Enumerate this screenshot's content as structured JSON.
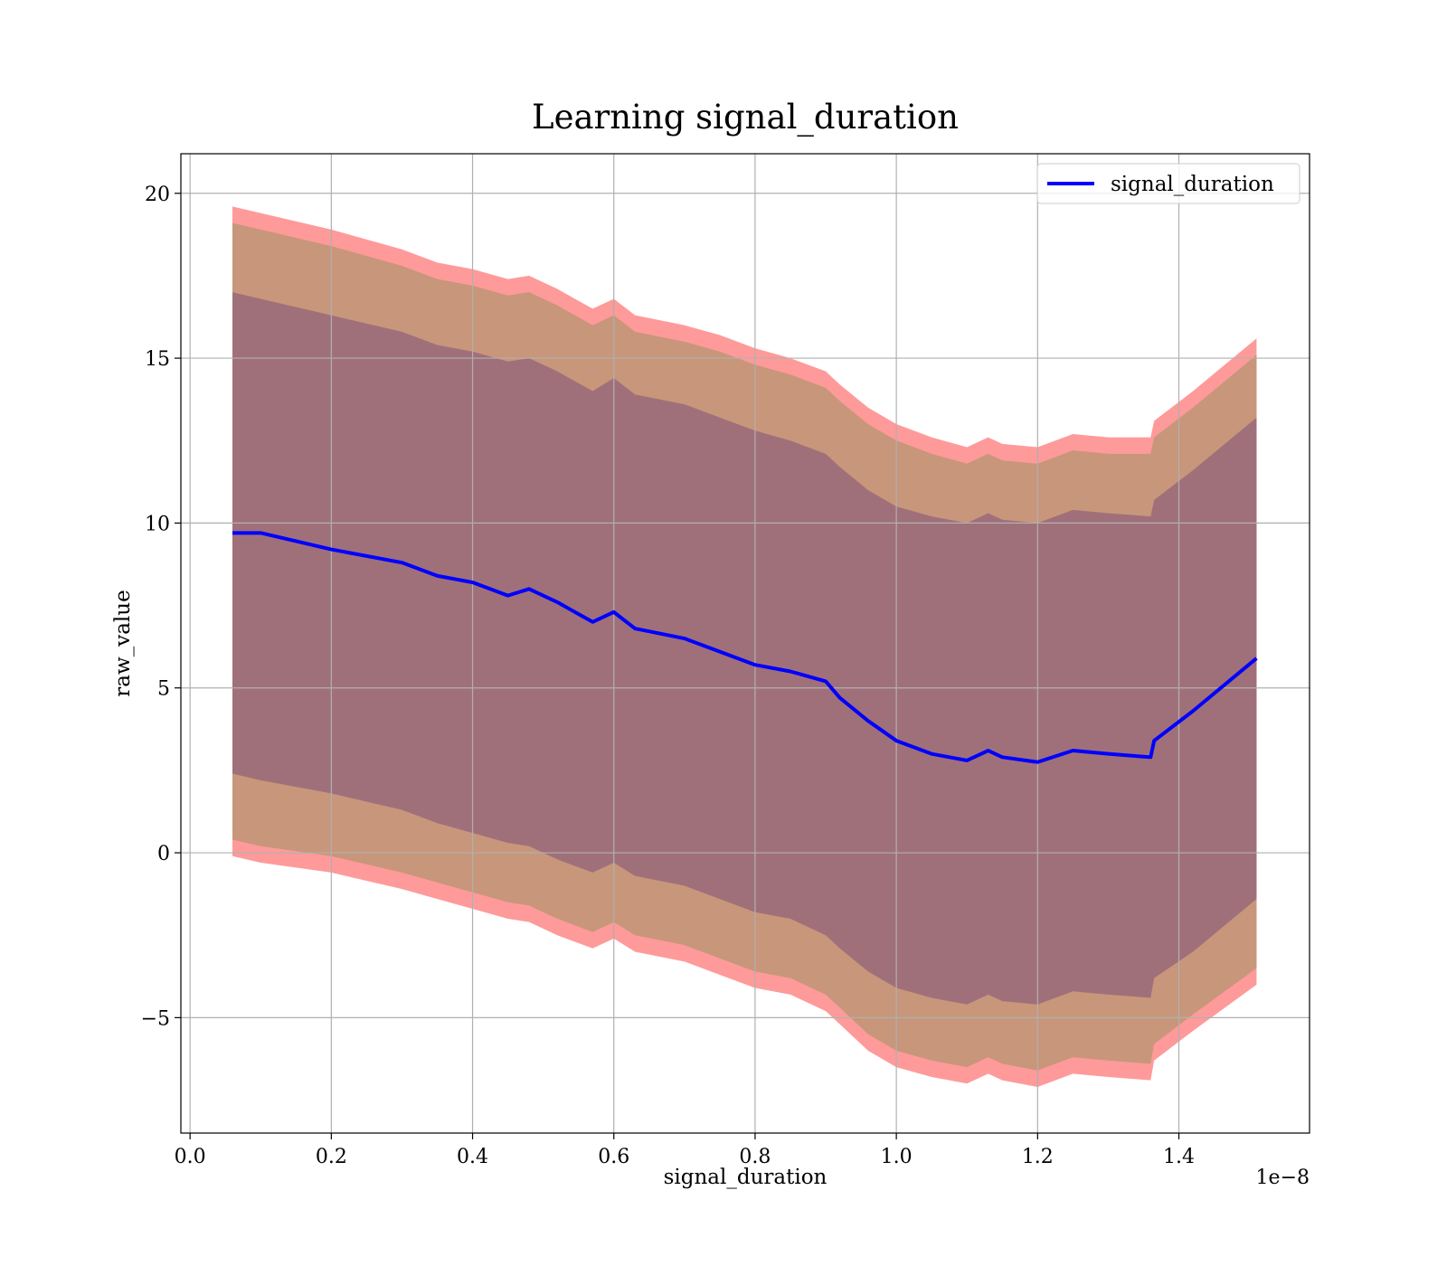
{
  "chart_data": {
    "type": "line",
    "title": "Learning signal_duration",
    "xlabel": "signal_duration",
    "ylabel": "raw_value",
    "x_offset_text": "1e−8",
    "xlim": [
      -0.013,
      1.585
    ],
    "ylim": [
      -8.5,
      21.2
    ],
    "xticks": [
      0.0,
      0.2,
      0.4,
      0.6,
      0.8,
      1.0,
      1.2,
      1.4
    ],
    "xtick_labels": [
      "0.0",
      "0.2",
      "0.4",
      "0.6",
      "0.8",
      "1.0",
      "1.2",
      "1.4"
    ],
    "yticks": [
      -5,
      0,
      5,
      10,
      15,
      20
    ],
    "ytick_labels": [
      "−5",
      "0",
      "5",
      "10",
      "15",
      "20"
    ],
    "grid": true,
    "legend": {
      "position": "top-right",
      "entries": [
        "signal_duration"
      ]
    },
    "colors": {
      "line": "#0000ff",
      "band_outer": "#ff9a9a",
      "band_middle": "#c8967a",
      "band_inner": "#a0707a",
      "grid": "#b0b0b0"
    },
    "x": [
      0.06,
      0.1,
      0.2,
      0.3,
      0.35,
      0.4,
      0.45,
      0.48,
      0.52,
      0.57,
      0.6,
      0.63,
      0.7,
      0.75,
      0.8,
      0.85,
      0.9,
      0.92,
      0.96,
      1.0,
      1.05,
      1.1,
      1.13,
      1.15,
      1.2,
      1.25,
      1.3,
      1.36,
      1.365,
      1.42,
      1.51
    ],
    "series": [
      {
        "name": "signal_duration",
        "values": [
          9.7,
          9.7,
          9.2,
          8.8,
          8.4,
          8.2,
          7.8,
          8.0,
          7.6,
          7.0,
          7.3,
          6.8,
          6.5,
          6.1,
          5.7,
          5.5,
          5.2,
          4.7,
          4.0,
          3.4,
          3.0,
          2.8,
          3.1,
          2.9,
          2.75,
          3.1,
          3.0,
          2.9,
          3.4,
          4.3,
          5.9
        ]
      }
    ],
    "bands": [
      {
        "level": "outer",
        "upper": [
          19.6,
          19.4,
          18.9,
          18.3,
          17.9,
          17.7,
          17.4,
          17.5,
          17.1,
          16.5,
          16.8,
          16.3,
          16.0,
          15.7,
          15.3,
          15.0,
          14.6,
          14.2,
          13.5,
          13.0,
          12.6,
          12.3,
          12.6,
          12.4,
          12.3,
          12.7,
          12.6,
          12.6,
          13.1,
          14.0,
          15.6
        ],
        "lower": [
          -0.1,
          -0.3,
          -0.6,
          -1.1,
          -1.4,
          -1.7,
          -2.0,
          -2.1,
          -2.5,
          -2.9,
          -2.6,
          -3.0,
          -3.3,
          -3.7,
          -4.1,
          -4.3,
          -4.8,
          -5.2,
          -6.0,
          -6.5,
          -6.8,
          -7.0,
          -6.7,
          -6.9,
          -7.1,
          -6.7,
          -6.8,
          -6.9,
          -6.3,
          -5.4,
          -4.0
        ]
      },
      {
        "level": "middle",
        "upper": [
          19.1,
          18.9,
          18.4,
          17.8,
          17.4,
          17.2,
          16.9,
          17.0,
          16.6,
          16.0,
          16.3,
          15.8,
          15.5,
          15.2,
          14.8,
          14.5,
          14.1,
          13.7,
          13.0,
          12.5,
          12.1,
          11.8,
          12.1,
          11.9,
          11.8,
          12.2,
          12.1,
          12.1,
          12.6,
          13.5,
          15.1
        ],
        "lower": [
          0.4,
          0.2,
          -0.1,
          -0.6,
          -0.9,
          -1.2,
          -1.5,
          -1.6,
          -2.0,
          -2.4,
          -2.1,
          -2.5,
          -2.8,
          -3.2,
          -3.6,
          -3.8,
          -4.3,
          -4.7,
          -5.5,
          -6.0,
          -6.3,
          -6.5,
          -6.2,
          -6.4,
          -6.6,
          -6.2,
          -6.3,
          -6.4,
          -5.8,
          -4.9,
          -3.5
        ]
      },
      {
        "level": "inner",
        "upper": [
          17.0,
          16.8,
          16.3,
          15.8,
          15.4,
          15.2,
          14.9,
          15.0,
          14.6,
          14.0,
          14.4,
          13.9,
          13.6,
          13.2,
          12.8,
          12.5,
          12.1,
          11.7,
          11.0,
          10.5,
          10.2,
          10.0,
          10.3,
          10.1,
          10.0,
          10.4,
          10.3,
          10.2,
          10.7,
          11.6,
          13.2
        ],
        "lower": [
          2.4,
          2.2,
          1.8,
          1.3,
          0.9,
          0.6,
          0.3,
          0.2,
          -0.2,
          -0.6,
          -0.3,
          -0.7,
          -1.0,
          -1.4,
          -1.8,
          -2.0,
          -2.5,
          -2.9,
          -3.6,
          -4.1,
          -4.4,
          -4.6,
          -4.3,
          -4.5,
          -4.6,
          -4.2,
          -4.3,
          -4.4,
          -3.8,
          -3.0,
          -1.4
        ]
      }
    ]
  }
}
